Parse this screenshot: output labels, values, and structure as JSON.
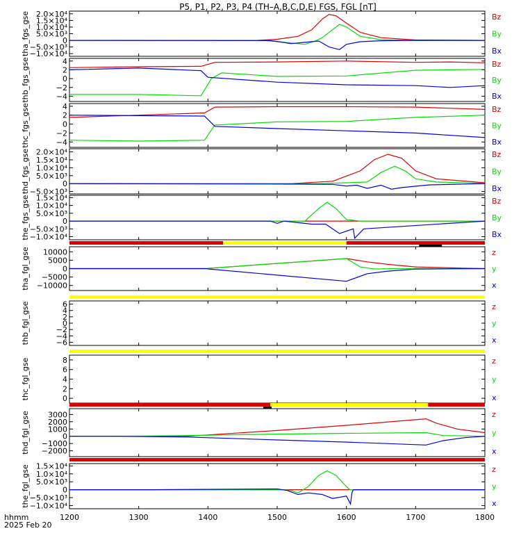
{
  "title": "P5, P1, P2, P3, P4 (TH–A,B,C,D,E) FGS, FGL [nT]",
  "colors": {
    "x": "#0000dd",
    "y": "#00dd00",
    "z": "#dd0000",
    "yellow": "#ffff00",
    "black": "#000000"
  },
  "footer": {
    "line1": "hhmm",
    "line2": "2025 Feb 20"
  },
  "chart_data": {
    "type": "line",
    "xlim": [
      1200,
      1800
    ],
    "xticks": [
      1200,
      1300,
      1400,
      1500,
      1600,
      1700,
      1800
    ],
    "xtick_labels": [
      "1200",
      "1300",
      "1400",
      "1500",
      "1600",
      "1700",
      "1800"
    ],
    "panels": [
      {
        "id": "tha_fgs_gse",
        "ylabel": "tha_fgs_gse",
        "ylim": [
          -12000,
          22000
        ],
        "ytick_labels": [
          "2.0×10⁴",
          "1.5×10⁴",
          "1.0×10⁴",
          "5.0×10³",
          "0",
          "−5.0×10³",
          "−1.0×10⁴"
        ],
        "ytick_values": [
          20000,
          15000,
          10000,
          5000,
          0,
          -5000,
          -10000
        ],
        "legend": [
          "Bz",
          "By",
          "Bx"
        ],
        "series": [
          {
            "name": "Bz",
            "color": "z",
            "x": [
              1200,
              1470,
              1500,
              1530,
              1550,
              1565,
              1575,
              1585,
              1600,
              1620,
              1650,
              1700,
              1800
            ],
            "y": [
              0,
              0,
              800,
              3000,
              8000,
              16000,
              19500,
              18500,
              13000,
              6000,
              2000,
              300,
              0
            ]
          },
          {
            "name": "By",
            "color": "y",
            "x": [
              1200,
              1480,
              1510,
              1540,
              1555,
              1565,
              1580,
              1590,
              1600,
              1620,
              1650,
              1700,
              1800
            ],
            "y": [
              0,
              0,
              -1500,
              -3000,
              -500,
              2000,
              8000,
              12000,
              10000,
              3000,
              500,
              0,
              0
            ]
          },
          {
            "name": "Bx",
            "color": "x",
            "x": [
              1200,
              1490,
              1500,
              1520,
              1540,
              1560,
              1575,
              1590,
              1600,
              1620,
              1650,
              1700,
              1800
            ],
            "y": [
              0,
              -200,
              -800,
              -2500,
              -1500,
              -500,
              -5000,
              -7000,
              -3000,
              -1000,
              -300,
              0,
              0
            ]
          }
        ]
      },
      {
        "id": "thb_fgs_gse",
        "ylabel": "thb_fgs_gse",
        "ylim": [
          -5.2,
          4.6
        ],
        "ytick_labels": [
          "4",
          "2",
          "0",
          "−2",
          "−4"
        ],
        "ytick_values": [
          4,
          2,
          0,
          -2,
          -4
        ],
        "legend": [
          "Bz",
          "By",
          "Bx"
        ],
        "series": [
          {
            "name": "Bz",
            "color": "z",
            "x": [
              1200,
              1300,
              1390,
              1410,
              1500,
              1600,
              1700,
              1750,
              1800
            ],
            "y": [
              2.5,
              2.7,
              2.8,
              3.7,
              3.8,
              4.0,
              3.7,
              3.8,
              3.6
            ]
          },
          {
            "name": "By",
            "color": "y",
            "x": [
              1200,
              1300,
              1390,
              1405,
              1420,
              1500,
              1600,
              1700,
              1800
            ],
            "y": [
              -3.6,
              -3.6,
              -3.9,
              0,
              1.3,
              0.5,
              0.6,
              1.9,
              2.1
            ]
          },
          {
            "name": "Bx",
            "color": "x",
            "x": [
              1200,
              1300,
              1390,
              1400,
              1500,
              1600,
              1700,
              1750,
              1800
            ],
            "y": [
              2.0,
              2.4,
              1.8,
              0.3,
              -0.8,
              -1.4,
              -1.6,
              -2.0,
              -1.6
            ]
          }
        ]
      },
      {
        "id": "thc_fgs_gse",
        "ylabel": "thc_fgs_gse",
        "ylim": [
          -5.2,
          4.6
        ],
        "ytick_labels": [
          "4",
          "2",
          "0",
          "−2",
          "−4"
        ],
        "ytick_values": [
          4,
          2,
          0,
          -2,
          -4
        ],
        "legend": [
          "Bz",
          "By",
          "Bx"
        ],
        "series": [
          {
            "name": "Bz",
            "color": "z",
            "x": [
              1200,
              1300,
              1395,
              1410,
              1500,
              1600,
              1700,
              1800
            ],
            "y": [
              1.5,
              2.0,
              2.5,
              3.8,
              3.9,
              3.9,
              3.8,
              3.3
            ]
          },
          {
            "name": "By",
            "color": "y",
            "x": [
              1200,
              1300,
              1395,
              1410,
              1500,
              1600,
              1700,
              1800
            ],
            "y": [
              -3.6,
              -3.8,
              -3.6,
              -0.2,
              0.5,
              0.6,
              1.5,
              2.0
            ]
          },
          {
            "name": "Bx",
            "color": "x",
            "x": [
              1200,
              1300,
              1395,
              1410,
              1500,
              1600,
              1700,
              1800
            ],
            "y": [
              2.0,
              1.9,
              1.8,
              -0.5,
              -1.0,
              -1.5,
              -2.0,
              -3.0
            ]
          }
        ]
      },
      {
        "id": "thd_fgs_gse",
        "ylabel": "thd_fgs_gse",
        "ylim": [
          -6500,
          22000
        ],
        "ytick_labels": [
          "2.0×10⁴",
          "1.5×10⁴",
          "1.0×10⁴",
          "5.0×10³",
          "0",
          "−5.0×10³"
        ],
        "ytick_values": [
          20000,
          15000,
          10000,
          5000,
          0,
          -5000
        ],
        "legend": [
          "Bz",
          "By",
          "Bx"
        ],
        "series": [
          {
            "name": "Bz",
            "color": "z",
            "x": [
              1200,
              1520,
              1580,
              1620,
              1640,
              1660,
              1680,
              1700,
              1730,
              1800
            ],
            "y": [
              0,
              0,
              1500,
              8000,
              15000,
              18500,
              16000,
              8000,
              3000,
              500
            ]
          },
          {
            "name": "By",
            "color": "y",
            "x": [
              1200,
              1560,
              1600,
              1630,
              1650,
              1670,
              1685,
              1700,
              1730,
              1800
            ],
            "y": [
              0,
              0,
              500,
              1000,
              7000,
              11000,
              8000,
              3000,
              1000,
              200
            ]
          },
          {
            "name": "Bx",
            "color": "x",
            "x": [
              1200,
              1520,
              1580,
              1600,
              1615,
              1630,
              1650,
              1665,
              1680,
              1720,
              1800
            ],
            "y": [
              0,
              -300,
              -500,
              -1500,
              -1000,
              -3000,
              -1000,
              -3500,
              -2500,
              -800,
              0
            ]
          }
        ]
      },
      {
        "id": "the_fgs_gse",
        "ylabel": "the_fgs_gse",
        "ylim": [
          -12000,
          16500
        ],
        "ytick_labels": [
          "1.5×10⁴",
          "1.0×10⁴",
          "5.0×10³",
          "0",
          "−5.0×10³",
          "−1.0×10⁴"
        ],
        "ytick_values": [
          15000,
          10000,
          5000,
          0,
          -5000,
          -10000
        ],
        "legend": [
          "Bz",
          "By",
          "Bx"
        ],
        "series": [
          {
            "name": "Bz",
            "color": "z",
            "x": [
              1200,
              1800
            ],
            "y": [
              0,
              0
            ]
          },
          {
            "name": "By",
            "color": "y",
            "x": [
              1200,
              1540,
              1560,
              1572,
              1585,
              1600,
              1620,
              1800
            ],
            "y": [
              0,
              0,
              8000,
              12000,
              8000,
              1000,
              0,
              0
            ]
          },
          {
            "name": "Bx",
            "color": "x",
            "x": [
              1200,
              1490,
              1500,
              1510,
              1550,
              1570,
              1590,
              1610,
              1612,
              1625,
              1800
            ],
            "y": [
              0,
              0,
              -1500,
              0,
              -2000,
              -2000,
              -8000,
              -5000,
              -11000,
              -5000,
              0
            ]
          }
        ]
      },
      {
        "id": "tha_fgl_gse",
        "ylabel": "tha_fgl_gse",
        "ylim": [
          -13000,
          13000
        ],
        "ytick_labels": [
          "10000",
          "5000",
          "0",
          "−5000",
          "−10000"
        ],
        "ytick_values": [
          10000,
          5000,
          0,
          -5000,
          -10000
        ],
        "legend": [
          "z",
          "y",
          "x"
        ],
        "series": [
          {
            "name": "z",
            "color": "z",
            "x": [
              1200,
              1395,
              1600,
              1630,
              1660,
              1700,
              1800
            ],
            "y": [
              0,
              0,
              6000,
              4000,
              2500,
              1000,
              0
            ]
          },
          {
            "name": "y",
            "color": "y",
            "x": [
              1200,
              1395,
              1600,
              1620,
              1640,
              1680,
              1800
            ],
            "y": [
              0,
              0,
              6000,
              1000,
              -200,
              0,
              0
            ]
          },
          {
            "name": "x",
            "color": "x",
            "x": [
              1200,
              1395,
              1600,
              1630,
              1660,
              1700,
              1800
            ],
            "y": [
              0,
              0,
              -7500,
              -3000,
              -1500,
              -300,
              0
            ]
          }
        ]
      },
      {
        "id": "thb_fgl_gse",
        "ylabel": "thb_fgl_gse",
        "ylim": [
          -7,
          7
        ],
        "ytick_labels": [
          "6",
          "4",
          "2",
          "0",
          "−2",
          "−4",
          "−6"
        ],
        "ytick_values": [
          6,
          4,
          2,
          0,
          -2,
          -4,
          -6
        ],
        "legend": [
          "z",
          "y",
          "x"
        ],
        "series": []
      },
      {
        "id": "thc_fgl_gse",
        "ylabel": "thc_fgl_gse",
        "ylim": [
          -1,
          9
        ],
        "ytick_labels": [
          "8",
          "6",
          "4",
          "2",
          "0"
        ],
        "ytick_values": [
          8,
          6,
          4,
          2,
          0
        ],
        "legend": [
          "z",
          "y",
          "x"
        ],
        "series": []
      },
      {
        "id": "thd_fgl_gse",
        "ylabel": "thd_fgl_gse",
        "ylim": [
          -2800,
          3800
        ],
        "ytick_labels": [
          "3000",
          "2000",
          "1000",
          "0",
          "−1000",
          "−2000"
        ],
        "ytick_values": [
          3000,
          2000,
          1000,
          0,
          -1000,
          -2000
        ],
        "legend": [
          "z",
          "y",
          "x"
        ],
        "series": [
          {
            "name": "z",
            "color": "z",
            "x": [
              1200,
              1270,
              1370,
              1500,
              1600,
              1715,
              1730,
              1760,
              1800
            ],
            "y": [
              0,
              0,
              0,
              800,
              1500,
              2400,
              1800,
              1000,
              500
            ]
          },
          {
            "name": "y",
            "color": "y",
            "x": [
              1200,
              1270,
              1370,
              1500,
              1600,
              1715,
              1740,
              1800
            ],
            "y": [
              0,
              0,
              100,
              300,
              400,
              500,
              100,
              0
            ]
          },
          {
            "name": "x",
            "color": "x",
            "x": [
              1200,
              1270,
              1370,
              1500,
              1600,
              1715,
              1740,
              1770,
              1800
            ],
            "y": [
              0,
              0,
              -100,
              -500,
              -800,
              -1200,
              -600,
              -200,
              0
            ]
          }
        ]
      },
      {
        "id": "the_fgl_gse",
        "ylabel": "the_fgl_gse",
        "ylim": [
          -12000,
          16500
        ],
        "ytick_labels": [
          "1.5×10⁴",
          "1.0×10⁴",
          "5.0×10³",
          "0",
          "−5.0×10³",
          "−1.0×10⁴"
        ],
        "ytick_values": [
          15000,
          10000,
          5000,
          0,
          -5000,
          -10000
        ],
        "legend": [
          "z",
          "y",
          "x"
        ],
        "series": [
          {
            "name": "z",
            "color": "z",
            "x": [
              1200,
              1800
            ],
            "y": [
              0,
              0
            ]
          },
          {
            "name": "y",
            "color": "y",
            "x": [
              1200,
              1510,
              1520,
              1530,
              1545,
              1560,
              1572,
              1585,
              1600,
              1605,
              1610,
              1800
            ],
            "y": [
              0,
              0,
              -500,
              -2000,
              2000,
              9000,
              12000,
              9000,
              2000,
              0,
              0,
              0
            ]
          },
          {
            "name": "x",
            "color": "x",
            "x": [
              1200,
              1320,
              1500,
              1515,
              1530,
              1545,
              1565,
              1580,
              1600,
              1606,
              1608,
              1610,
              1800
            ],
            "y": [
              0,
              0,
              500,
              -500,
              -3000,
              -2000,
              -3000,
              -5500,
              -4000,
              -9000,
              -2000,
              0,
              0
            ]
          }
        ]
      }
    ],
    "status_bars": [
      {
        "id": "bar-a",
        "segments": [
          {
            "x0": 1200,
            "x1": 1422,
            "c": "z"
          },
          {
            "x0": 1422,
            "x1": 1600,
            "c": "yellow"
          },
          {
            "x0": 1600,
            "x1": 1800,
            "c": "z"
          }
        ],
        "marks": [
          {
            "x0": 1705,
            "x1": 1738
          }
        ]
      },
      {
        "id": "bar-b",
        "segments": [
          {
            "x0": 1200,
            "x1": 1800,
            "c": "yellow"
          }
        ],
        "marks": []
      },
      {
        "id": "bar-c",
        "segments": [
          {
            "x0": 1200,
            "x1": 1800,
            "c": "yellow"
          }
        ],
        "marks": []
      },
      {
        "id": "bar-d",
        "segments": [
          {
            "x0": 1200,
            "x1": 1490,
            "c": "z"
          },
          {
            "x0": 1490,
            "x1": 1718,
            "c": "yellow"
          },
          {
            "x0": 1718,
            "x1": 1800,
            "c": "z"
          }
        ],
        "marks": [
          {
            "x0": 1480,
            "x1": 1492
          }
        ]
      },
      {
        "id": "bar-e",
        "segments": [
          {
            "x0": 1200,
            "x1": 1800,
            "c": "z"
          }
        ],
        "marks": []
      }
    ]
  }
}
